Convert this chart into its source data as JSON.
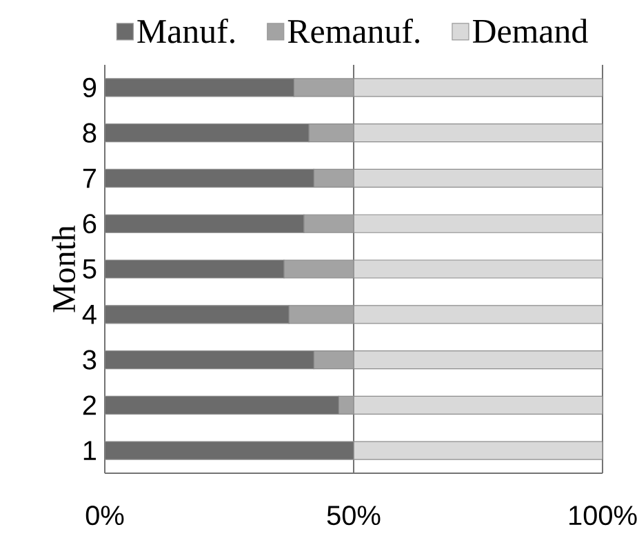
{
  "chart_data": {
    "type": "bar",
    "orientation": "horizontal",
    "stacked": true,
    "ylabel": "Month",
    "categories": [
      "9",
      "8",
      "7",
      "6",
      "5",
      "4",
      "3",
      "2",
      "1"
    ],
    "series": [
      {
        "name": "Manuf.",
        "color": "#6b6b6b",
        "values": [
          38,
          41,
          42,
          40,
          36,
          37,
          42,
          47,
          50
        ]
      },
      {
        "name": "Remanuf.",
        "color": "#a3a3a3",
        "values": [
          12,
          9,
          8,
          10,
          14,
          13,
          8,
          3,
          0
        ]
      },
      {
        "name": "Demand",
        "color": "#d9d9d9",
        "values": [
          50,
          50,
          50,
          50,
          50,
          50,
          50,
          50,
          50
        ]
      }
    ],
    "xlim": [
      0,
      100
    ],
    "xticks": [
      {
        "value": 0,
        "label": "0%"
      },
      {
        "value": 50,
        "label": "50%"
      },
      {
        "value": 100,
        "label": "100%"
      }
    ],
    "grid": "x",
    "legend": "top"
  }
}
